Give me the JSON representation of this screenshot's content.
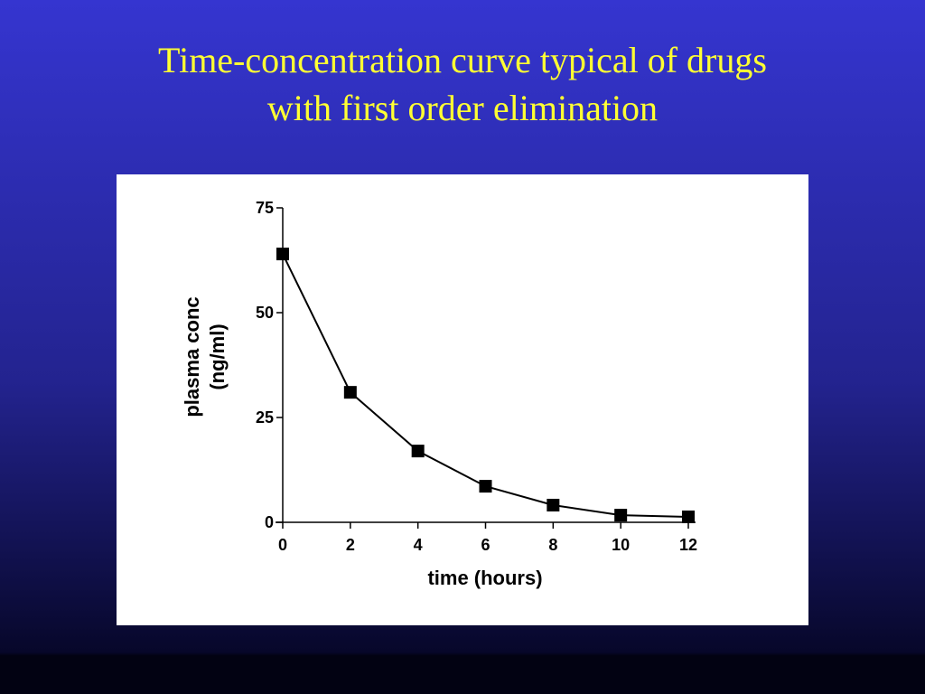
{
  "slide": {
    "title": [
      "Time-concentration curve typical of drugs",
      "with first order elimination"
    ]
  },
  "chart_data": {
    "type": "line",
    "x": [
      0,
      2,
      4,
      6,
      8,
      10,
      12
    ],
    "series": [
      {
        "color": "#000000",
        "values": [
          64,
          31,
          17,
          8.6,
          4.1,
          1.7,
          1.3
        ]
      }
    ],
    "xlabel": "time (hours)",
    "ylabel": [
      "plasma conc",
      "(ng/ml)"
    ],
    "xlim": [
      0,
      12
    ],
    "ylim": [
      0,
      75
    ],
    "xticks": [
      0,
      2,
      4,
      6,
      8,
      10,
      12
    ],
    "yticks": [
      0,
      25,
      50,
      75
    ],
    "marker": "square"
  }
}
